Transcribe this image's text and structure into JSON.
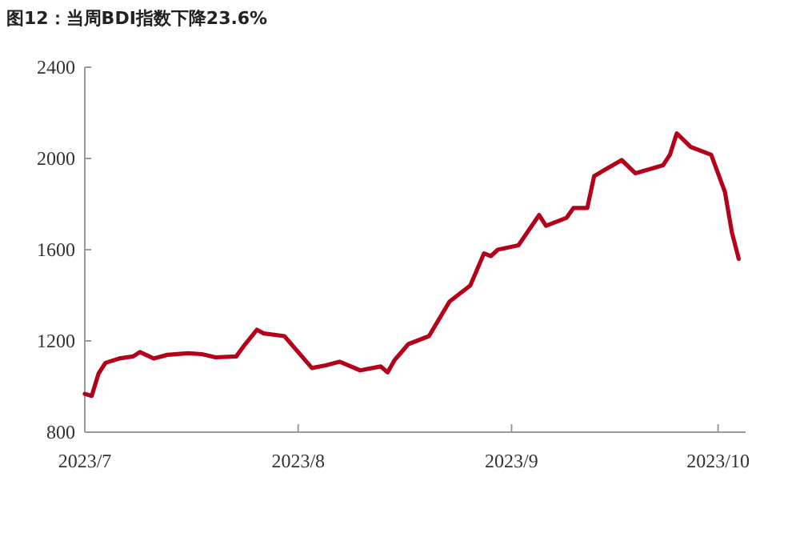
{
  "chart_data": {
    "type": "line",
    "title": "图12：当周BDI指数下降23.6%",
    "x": [
      "2023-07-01",
      "2023-07-02",
      "2023-07-03",
      "2023-07-04",
      "2023-07-06",
      "2023-07-08",
      "2023-07-09",
      "2023-07-11",
      "2023-07-13",
      "2023-07-16",
      "2023-07-18",
      "2023-07-20",
      "2023-07-23",
      "2023-07-24",
      "2023-07-26",
      "2023-07-27",
      "2023-07-30",
      "2023-08-03",
      "2023-08-05",
      "2023-08-07",
      "2023-08-10",
      "2023-08-13",
      "2023-08-14",
      "2023-08-15",
      "2023-08-17",
      "2023-08-20",
      "2023-08-23",
      "2023-08-26",
      "2023-08-28",
      "2023-08-29",
      "2023-08-30",
      "2023-09-02",
      "2023-09-05",
      "2023-09-06",
      "2023-09-09",
      "2023-09-10",
      "2023-09-12",
      "2023-09-13",
      "2023-09-17",
      "2023-09-19",
      "2023-09-23",
      "2023-09-24",
      "2023-09-25",
      "2023-09-27",
      "2023-09-30",
      "2023-10-02",
      "2023-10-03",
      "2023-10-04"
    ],
    "series": [
      {
        "color": "#b5001a",
        "values": [
          968,
          959,
          1057,
          1104,
          1123,
          1132,
          1151,
          1123,
          1139,
          1146,
          1142,
          1128,
          1132,
          1174,
          1249,
          1233,
          1221,
          1081,
          1093,
          1109,
          1071,
          1088,
          1062,
          1116,
          1186,
          1221,
          1373,
          1443,
          1584,
          1572,
          1600,
          1619,
          1752,
          1705,
          1740,
          1783,
          1783,
          1923,
          1993,
          1935,
          1970,
          2016,
          2110,
          2051,
          2016,
          1853,
          1677,
          1560
        ]
      }
    ],
    "xlim": [
      "2023-07-01",
      "2023-10-05"
    ],
    "xticks": [
      {
        "value": "2023-07-01",
        "label": "2023/7"
      },
      {
        "value": "2023-08-01",
        "label": "2023/8"
      },
      {
        "value": "2023-09-01",
        "label": "2023/9"
      },
      {
        "value": "2023-10-01",
        "label": "2023/10"
      }
    ],
    "ylim": [
      800,
      2400
    ],
    "yticks": [
      800,
      1200,
      1600,
      2000,
      2400
    ],
    "grid": false,
    "legend": false,
    "marker": "none",
    "line_style": "solid"
  }
}
